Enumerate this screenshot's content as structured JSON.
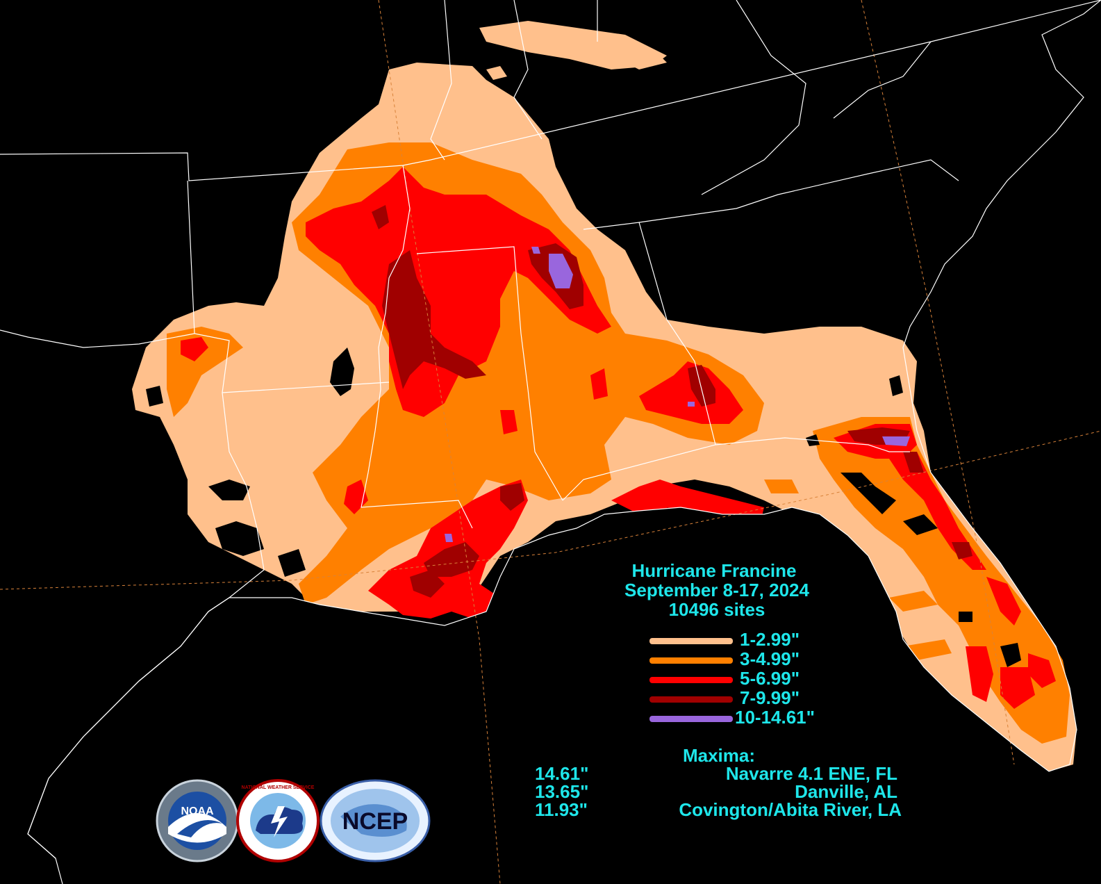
{
  "title": {
    "line1": "Hurricane Francine",
    "line2": "September 8-17, 2024",
    "line3": "10496 sites"
  },
  "legend": [
    {
      "label": "1-2.99\"",
      "color": "#ffc08c"
    },
    {
      "label": "3-4.99\"",
      "color": "#ff8000"
    },
    {
      "label": "5-6.99\"",
      "color": "#ff0000"
    },
    {
      "label": "7-9.99\"",
      "color": "#a00000"
    },
    {
      "label": "10-14.61\"",
      "color": "#9966dd"
    }
  ],
  "maxima": {
    "heading": "Maxima:",
    "rows": [
      {
        "value": "14.61\"",
        "location": "Navarre 4.1 ENE, FL"
      },
      {
        "value": "13.65\"",
        "location": "Danville, AL"
      },
      {
        "value": "11.93\"",
        "location": "Covington/Abita River, LA"
      }
    ]
  },
  "logos": {
    "noaa": "NOAA",
    "nws": "NATIONAL WEATHER SERVICE",
    "ncep": "NCEP"
  },
  "colors": {
    "background": "#000000",
    "text": "#1ee6ea",
    "borders": "#ffffff",
    "graticule": "#d8823a"
  }
}
